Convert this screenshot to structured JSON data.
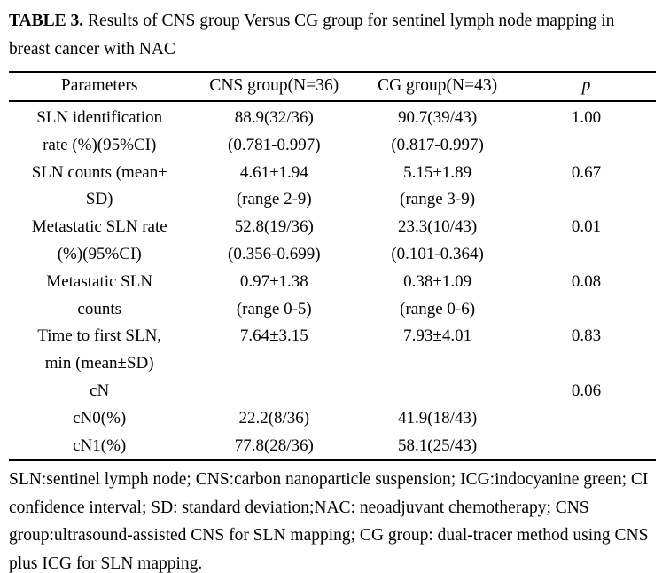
{
  "title": {
    "label": "TABLE 3.",
    "text": "Results of CNS group Versus CG group for sentinel lymph node mapping in breast cancer with NAC"
  },
  "table": {
    "headers": [
      "Parameters",
      "CNS group(N=36)",
      "CG group(N=43)",
      "p"
    ],
    "rows": [
      {
        "param": [
          "SLN identification",
          "rate (%)(95%CI)"
        ],
        "cns": [
          "88.9(32/36)",
          "(0.781-0.997)"
        ],
        "cg": [
          "90.7(39/43)",
          "(0.817-0.997)"
        ],
        "p": [
          "1.00"
        ]
      },
      {
        "param": [
          "SLN counts (mean±",
          "SD)"
        ],
        "cns": [
          "4.61±1.94",
          "(range 2-9)"
        ],
        "cg": [
          "5.15±1.89",
          "(range 3-9)"
        ],
        "p": [
          "0.67"
        ]
      },
      {
        "param": [
          "Metastatic SLN rate",
          "(%)(95%CI)"
        ],
        "cns": [
          "52.8(19/36)",
          "(0.356-0.699)"
        ],
        "cg": [
          "23.3(10/43)",
          "(0.101-0.364)"
        ],
        "p": [
          "0.01"
        ]
      },
      {
        "param": [
          "Metastatic SLN",
          "counts"
        ],
        "cns": [
          "0.97±1.38",
          "(range 0-5)"
        ],
        "cg": [
          "0.38±1.09",
          "(range 0-6)"
        ],
        "p": [
          "0.08"
        ]
      },
      {
        "param": [
          "Time to first SLN,",
          "min (mean±SD)"
        ],
        "cns": [
          "7.64±3.15"
        ],
        "cg": [
          "7.93±4.01"
        ],
        "p": [
          "0.83"
        ]
      },
      {
        "param": [
          "cN"
        ],
        "cns": [],
        "cg": [],
        "p": [
          "0.06"
        ]
      },
      {
        "param": [
          "cN0(%)"
        ],
        "cns": [
          "22.2(8/36)"
        ],
        "cg": [
          "41.9(18/43)"
        ],
        "p": []
      },
      {
        "param": [
          "cN1(%)"
        ],
        "cns": [
          "77.8(28/36)"
        ],
        "cg": [
          "58.1(25/43)"
        ],
        "p": []
      }
    ]
  },
  "footnote": "SLN:sentinel lymph node; CNS:carbon nanoparticle suspension; ICG:indocyanine green; CI confidence interval; SD: standard deviation;NAC: neoadjuvant chemotherapy; CNS group:ultrasound-assisted CNS for SLN mapping; CG group: dual-tracer method using CNS plus ICG for SLN mapping.",
  "colors": {
    "text": "#000000",
    "background": "#ffffff",
    "rule": "#000000"
  }
}
